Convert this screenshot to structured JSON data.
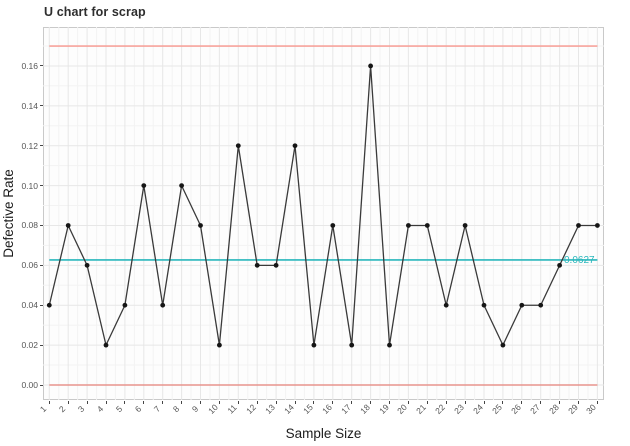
{
  "title": "U chart for scrap",
  "chart_data": {
    "type": "line",
    "chart_kind": "u control chart",
    "title": "U chart for scrap",
    "xlabel": "Sample Size",
    "ylabel": "Defective Rate",
    "x": [
      1,
      2,
      3,
      4,
      5,
      6,
      7,
      8,
      9,
      10,
      11,
      12,
      13,
      14,
      15,
      16,
      17,
      18,
      19,
      20,
      21,
      22,
      23,
      24,
      25,
      26,
      27,
      28,
      29,
      30
    ],
    "values": [
      0.04,
      0.08,
      0.06,
      0.02,
      0.04,
      0.1,
      0.04,
      0.1,
      0.08,
      0.02,
      0.12,
      0.06,
      0.06,
      0.12,
      0.02,
      0.08,
      0.02,
      0.16,
      0.02,
      0.08,
      0.08,
      0.04,
      0.08,
      0.04,
      0.02,
      0.04,
      0.04,
      0.06,
      0.08,
      0.08
    ],
    "y_tick_labels": [
      "0.00",
      "0.02",
      "0.04",
      "0.06",
      "0.08",
      "0.10",
      "0.12",
      "0.14",
      "0.16"
    ],
    "ylim": [
      -0.008,
      0.1795
    ],
    "grid": "major and minor, light gray, both axes",
    "legend": "none",
    "center_line": {
      "value": 0.0627,
      "label": "0.0627"
    },
    "upper_control_limit": {
      "value": 0.17
    },
    "lower_control_limit": {
      "value": 0.0
    },
    "colors": {
      "series_line": "#3a3a3a",
      "point": "#161616",
      "center_line": "#2ab7bc",
      "center_label": "#2ab7bc",
      "ucl_line": "#f7a39b",
      "lcl_line": "#e8948d",
      "grid_major": "#e7e7e7",
      "grid_minor": "#f3f3f3",
      "panel_border": "#c9c9c9",
      "panel_bg": "#fdfdfd"
    }
  }
}
